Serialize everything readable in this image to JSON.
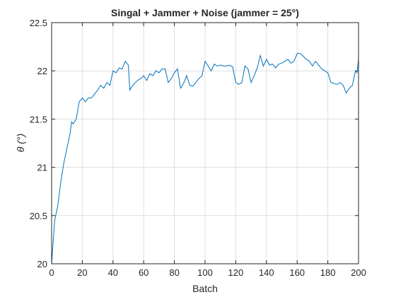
{
  "chart_data": {
    "type": "line",
    "title": "Singal + Jammer + Noise (jammer = 25°)",
    "xlabel": "Batch",
    "ylabel": "θ (°)",
    "x": [
      0,
      2,
      4,
      6,
      8,
      10,
      12,
      13,
      14,
      16,
      18,
      20,
      22,
      24,
      26,
      28,
      30,
      32,
      34,
      36,
      38,
      40,
      42,
      44,
      46,
      48,
      50,
      51,
      52,
      54,
      56,
      58,
      60,
      62,
      64,
      66,
      68,
      70,
      72,
      74,
      76,
      78,
      80,
      82,
      84,
      86,
      88,
      90,
      92,
      94,
      96,
      98,
      100,
      102,
      104,
      106,
      108,
      110,
      112,
      114,
      116,
      118,
      120,
      122,
      124,
      126,
      128,
      130,
      132,
      134,
      136,
      138,
      140,
      142,
      144,
      146,
      148,
      150,
      152,
      154,
      156,
      158,
      160,
      162,
      164,
      166,
      168,
      170,
      172,
      174,
      176,
      178,
      180,
      182,
      184,
      186,
      188,
      190,
      192,
      194,
      196,
      198,
      199,
      200
    ],
    "series": [
      {
        "name": "θ",
        "color": "#0072bd",
        "values": [
          20.0,
          20.45,
          20.6,
          20.85,
          21.05,
          21.2,
          21.35,
          21.47,
          21.45,
          21.5,
          21.68,
          21.72,
          21.68,
          21.72,
          21.72,
          21.76,
          21.8,
          21.85,
          21.82,
          21.88,
          21.85,
          22.0,
          21.98,
          22.03,
          22.02,
          22.1,
          22.06,
          21.8,
          21.83,
          21.87,
          21.9,
          21.92,
          21.95,
          21.9,
          21.97,
          21.95,
          22.0,
          21.98,
          22.02,
          22.02,
          21.88,
          21.92,
          21.98,
          22.02,
          21.82,
          21.87,
          21.95,
          21.85,
          21.84,
          21.88,
          21.92,
          21.95,
          22.1,
          22.05,
          22.0,
          22.07,
          22.05,
          22.06,
          22.05,
          22.05,
          22.06,
          22.04,
          21.88,
          21.86,
          21.88,
          22.05,
          22.02,
          21.88,
          21.95,
          22.03,
          22.16,
          22.05,
          22.12,
          22.06,
          22.07,
          22.03,
          22.07,
          22.08,
          22.1,
          22.12,
          22.08,
          22.1,
          22.18,
          22.18,
          22.15,
          22.12,
          22.1,
          22.05,
          22.1,
          22.06,
          22.02,
          22.0,
          21.98,
          21.88,
          21.87,
          21.86,
          21.88,
          21.85,
          21.77,
          21.82,
          21.85,
          22.0,
          21.98,
          22.12
        ]
      }
    ],
    "xlim": [
      0,
      200
    ],
    "xticks": [
      0,
      20,
      40,
      60,
      80,
      100,
      120,
      140,
      160,
      180,
      200
    ],
    "ylim": [
      20,
      22.5
    ],
    "yticks": [
      20,
      20.5,
      21,
      21.5,
      22,
      22.5
    ],
    "grid": true
  }
}
